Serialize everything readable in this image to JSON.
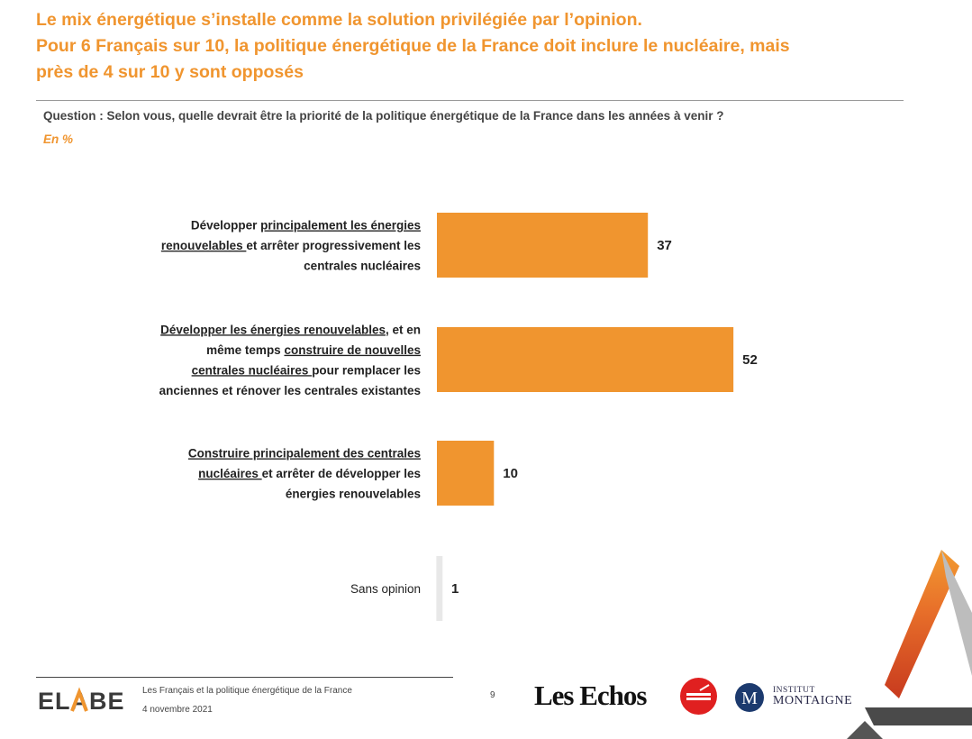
{
  "header": {
    "title_lines": [
      "Le mix énergétique s’installe comme la solution privilégiée par l’opinion.",
      "Pour 6 Français sur 10, la politique énergétique de la France doit inclure le nucléaire, mais",
      "près de 4 sur 10 y sont opposés"
    ],
    "question": "Question : Selon vous, quelle devrait être la priorité de la politique énergétique de la France dans les années à venir ?",
    "unit": "En %"
  },
  "chart_data": {
    "type": "bar",
    "orientation": "horizontal",
    "unit": "%",
    "categories": [
      "Développer principalement les énergies renouvelables et arrêter progressivement les centrales nucléaires",
      "Développer les énergies renouvelables, et en même temps construire de nouvelles centrales nucléaires pour remplacer les anciennes et rénover les centrales existantes",
      "Construire principalement des centrales nucléaires et arrêter de développer les énergies renouvelables",
      "Sans opinion"
    ],
    "category_lines": [
      [
        [
          {
            "t": "Développer ",
            "u": false
          },
          {
            "t": "principalement les énergies",
            "u": true
          }
        ],
        [
          {
            "t": "renouvelables ",
            "u": true
          },
          {
            "t": "et arrêter progressivement les",
            "u": false
          }
        ],
        [
          {
            "t": "centrales nucléaires",
            "u": false
          }
        ]
      ],
      [
        [
          {
            "t": "Développer les énergies renouvelables",
            "u": true
          },
          {
            "t": ", et en",
            "u": false
          }
        ],
        [
          {
            "t": "même temps ",
            "u": false
          },
          {
            "t": "construire de nouvelles",
            "u": true
          }
        ],
        [
          {
            "t": "centrales nucléaires ",
            "u": true
          },
          {
            "t": "pour remplacer les",
            "u": false
          }
        ],
        [
          {
            "t": "anciennes et rénover les centrales existantes",
            "u": false
          }
        ]
      ],
      [
        [
          {
            "t": "Construire principalement des centrales",
            "u": true
          }
        ],
        [
          {
            "t": "nucléaires ",
            "u": true
          },
          {
            "t": "et arrêter de développer les",
            "u": false
          }
        ],
        [
          {
            "t": "énergies renouvelables",
            "u": false
          }
        ]
      ],
      [
        [
          {
            "t": "Sans opinion",
            "u": false
          }
        ]
      ]
    ],
    "bold_labels": [
      true,
      true,
      true,
      false
    ],
    "values": [
      37,
      52,
      10,
      1
    ],
    "bar_color": "#f0952f",
    "minor_bar_color": "#e8e8e8",
    "xlim": [
      0,
      100
    ],
    "axis_color": "#cfcfcf"
  },
  "footer": {
    "logo_text": "ELABE",
    "study": "Les Français et la politique énergétique de la France",
    "date": "4 novembre 2021",
    "page": "9",
    "partner1": "Les Echos",
    "partner3_line1": "INSTITUT",
    "partner3_line2": "MONTAIGNE",
    "partner3_icon_letter": "M"
  }
}
